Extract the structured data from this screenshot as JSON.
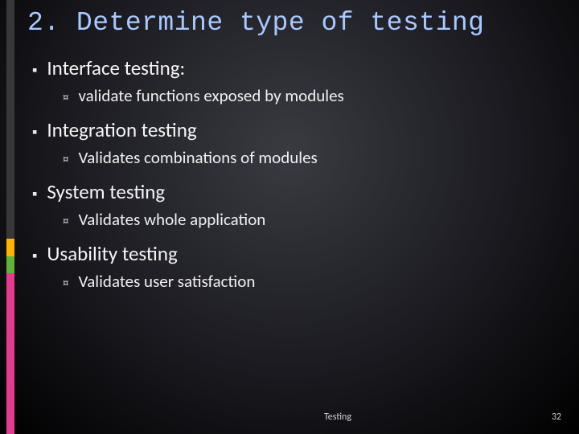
{
  "title": "2. Determine type of testing",
  "items": [
    {
      "label": "Interface testing:",
      "sub": [
        "validate functions exposed by modules"
      ]
    },
    {
      "label": "Integration testing",
      "sub": [
        "Validates combinations of modules"
      ]
    },
    {
      "label": "System testing",
      "sub": [
        "Validates whole application"
      ]
    },
    {
      "label": "Usability testing",
      "sub": [
        "Validates user satisfaction"
      ]
    }
  ],
  "footer": {
    "center": "Testing",
    "page": "32"
  },
  "style": {
    "title_color": "#a9c8ff",
    "title_font": "Courier New",
    "body_font": "Calibri",
    "bg_gradient_center": "#3a3a42",
    "bg_gradient_edge": "#000000",
    "accent_colors": [
      "#373737",
      "#ffb400",
      "#5fb336",
      "#e63a8f"
    ],
    "l1_bullet": "▪",
    "l2_bullet": "¤",
    "l1_fontsize": 25,
    "l2_fontsize": 21,
    "title_fontsize": 33
  }
}
